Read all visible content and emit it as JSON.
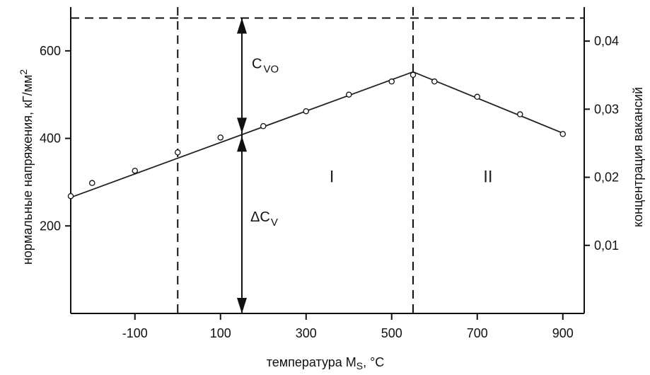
{
  "chart_data": {
    "type": "line",
    "title": "",
    "xlabel": "температура M",
    "xlabel_sub": "S",
    "xlabel_unit": ", °С",
    "ylabel": "нормальные напряжения, кГ/мм",
    "ylabel_sup": "2",
    "y2label": "концентрация вакансий",
    "xlim": [
      -250,
      950
    ],
    "ylim": [
      0,
      700
    ],
    "y2lim": [
      0,
      0.045
    ],
    "x_ticks": [
      -100,
      100,
      300,
      500,
      700,
      900
    ],
    "x_tick_labels": [
      "-100",
      "100",
      "300",
      "500",
      "700",
      "900"
    ],
    "y_ticks": [
      200,
      400,
      600
    ],
    "y_tick_labels": [
      "200",
      "400",
      "600"
    ],
    "y2_ticks": [
      0.01,
      0.02,
      0.03,
      0.04
    ],
    "y2_tick_labels": [
      "0,01",
      "0,02",
      "0,03",
      "0,04"
    ],
    "grid": false,
    "series": [
      {
        "points": [
          [
            -250,
            268
          ],
          [
            -200,
            298
          ],
          [
            -100,
            326
          ],
          [
            0,
            368
          ],
          [
            100,
            402
          ],
          [
            200,
            428
          ],
          [
            300,
            462
          ],
          [
            400,
            500
          ],
          [
            500,
            530
          ],
          [
            550,
            545
          ],
          [
            600,
            530
          ],
          [
            700,
            495
          ],
          [
            800,
            455
          ],
          [
            900,
            410
          ]
        ],
        "fit_line": [
          [
            -250,
            265
          ],
          [
            550,
            552
          ],
          [
            900,
            412
          ]
        ],
        "color": "#222222"
      }
    ],
    "reference_lines": {
      "horizontal_y": 675,
      "vertical_x": [
        0,
        550
      ],
      "arrow_x": 150
    },
    "annotations": {
      "c_vo": "С",
      "c_vo_sub": "VO",
      "delta_cv": "ΔС",
      "delta_cv_sub": "V",
      "region_1": "I",
      "region_2": "II"
    }
  }
}
